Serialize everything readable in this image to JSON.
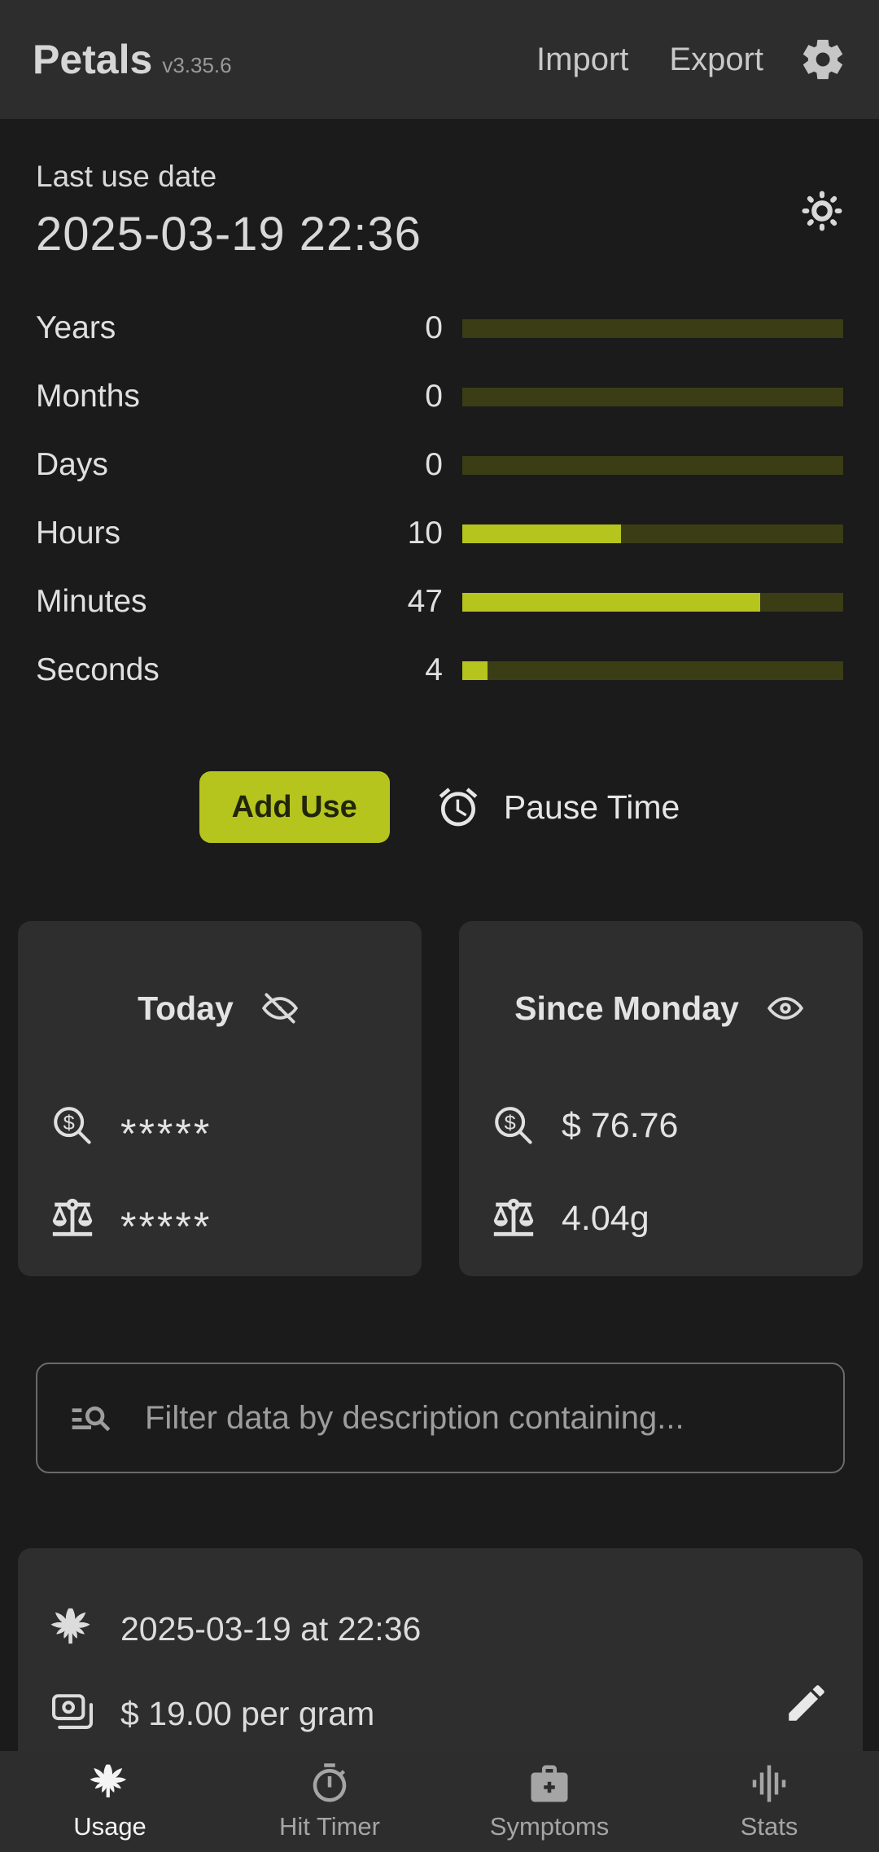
{
  "header": {
    "app_name": "Petals",
    "version": "v3.35.6",
    "import_label": "Import",
    "export_label": "Export"
  },
  "last_use": {
    "label": "Last use date",
    "value": "2025-03-19 22:36"
  },
  "timers": {
    "rows": [
      {
        "label": "Years",
        "value": "0",
        "percent": 0
      },
      {
        "label": "Months",
        "value": "0",
        "percent": 0
      },
      {
        "label": "Days",
        "value": "0",
        "percent": 0
      },
      {
        "label": "Hours",
        "value": "10",
        "percent": 41.7
      },
      {
        "label": "Minutes",
        "value": "47",
        "percent": 78.3
      },
      {
        "label": "Seconds",
        "value": "4",
        "percent": 6.7
      }
    ]
  },
  "actions": {
    "add_use_label": "Add Use",
    "pause_time_label": "Pause Time"
  },
  "summary_cards": [
    {
      "title": "Today",
      "visibility": "hidden",
      "money_value": "*****",
      "weight_value": "*****"
    },
    {
      "title": "Since Monday",
      "visibility": "visible",
      "money_value": "$ 76.76",
      "weight_value": "4.04g"
    }
  ],
  "filter": {
    "placeholder": "Filter data by description containing..."
  },
  "entries": [
    {
      "datetime": "2025-03-19 at 22:36",
      "price": "$ 19.00 per gram"
    }
  ],
  "nav": {
    "items": [
      {
        "label": "Usage",
        "active": true
      },
      {
        "label": "Hit Timer",
        "active": false
      },
      {
        "label": "Symptoms",
        "active": false
      },
      {
        "label": "Stats",
        "active": false
      }
    ]
  },
  "colors": {
    "accent": "#b6c41e",
    "bar_track": "#3b3d15",
    "header_bg": "#2d2d2d",
    "page_bg": "#1b1b1b",
    "card_bg": "#2e2e2e",
    "add_use_text": "#20250b"
  }
}
